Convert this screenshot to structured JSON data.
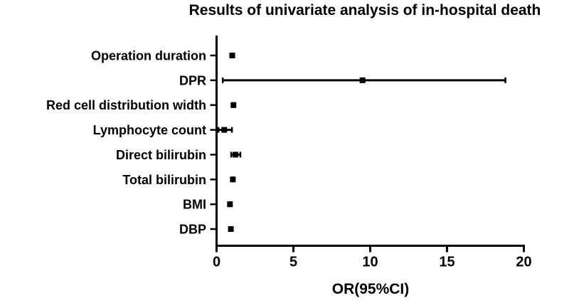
{
  "figure": {
    "background": "#ffffff",
    "ink": "#000000"
  },
  "chart_data": {
    "type": "scatter",
    "variant": "forest-plot",
    "title": "Results of univariate analysis of in-hospital death",
    "xlabel": "OR(95%CI)",
    "xlim": [
      0,
      20
    ],
    "xticks": [
      0,
      5,
      10,
      15,
      20
    ],
    "xtick_labels": [
      "0",
      "5",
      "10",
      "15",
      "20"
    ],
    "grid": false,
    "legend": "none",
    "marker": "filled-square",
    "marker_color": "#000000",
    "categories": [
      "Operation duration",
      "DPR",
      "Red cell distribution width",
      "Lymphocyte count",
      "Direct bilirubin",
      "Total bilirubin",
      "BMI",
      "DBP"
    ],
    "points": [
      {
        "label": "Operation duration",
        "or": 1.02,
        "ci_low": 1.02,
        "ci_high": 1.02
      },
      {
        "label": "DPR",
        "or": 9.5,
        "ci_low": 0.4,
        "ci_high": 18.8
      },
      {
        "label": "Red cell distribution width",
        "or": 1.1,
        "ci_low": 1.1,
        "ci_high": 1.1
      },
      {
        "label": "Lymphocyte count",
        "or": 0.5,
        "ci_low": 0.12,
        "ci_high": 1.0
      },
      {
        "label": "Direct bilirubin",
        "or": 1.23,
        "ci_low": 0.95,
        "ci_high": 1.55
      },
      {
        "label": "Total bilirubin",
        "or": 1.06,
        "ci_low": 1.06,
        "ci_high": 1.06
      },
      {
        "label": "BMI",
        "or": 0.87,
        "ci_low": 0.87,
        "ci_high": 0.87
      },
      {
        "label": "DBP",
        "or": 0.93,
        "ci_low": 0.93,
        "ci_high": 0.93
      }
    ]
  }
}
